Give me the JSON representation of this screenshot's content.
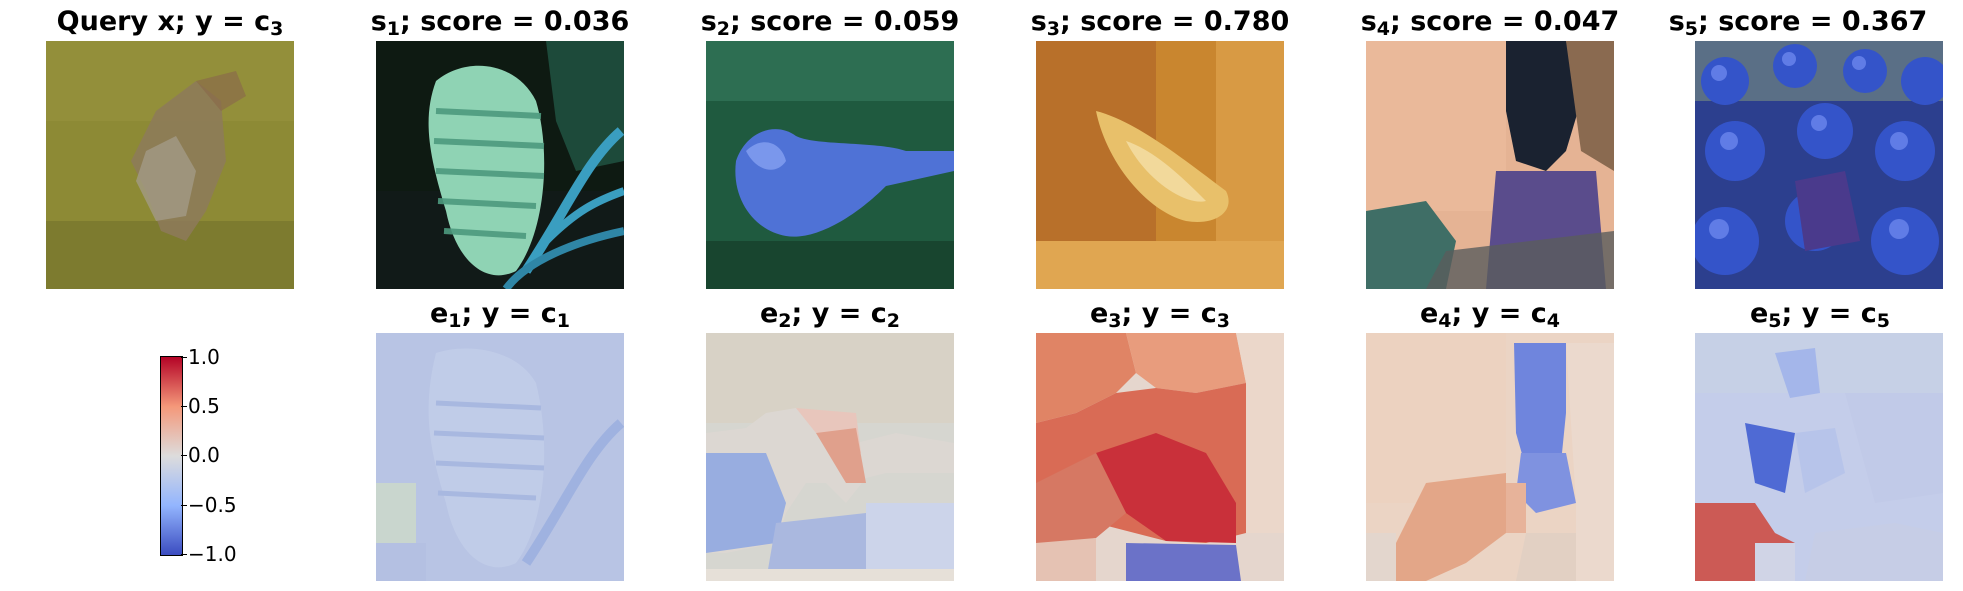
{
  "query": {
    "pre": "Query x; y = c",
    "sub": "3"
  },
  "titles": [
    {
      "name": "s",
      "sub": "1",
      "text": "; score = 0.036"
    },
    {
      "name": "s",
      "sub": "2",
      "text": "; score = 0.059"
    },
    {
      "name": "s",
      "sub": "3",
      "text": "; score = 0.780"
    },
    {
      "name": "s",
      "sub": "4",
      "text": "; score = 0.047"
    },
    {
      "name": "s",
      "sub": "5",
      "text": "; score = 0.367"
    }
  ],
  "explanations": [
    {
      "name": "e",
      "sub": "1",
      "mid": "; y = c",
      "sub2": "1"
    },
    {
      "name": "e",
      "sub": "2",
      "mid": "; y = c",
      "sub2": "2"
    },
    {
      "name": "e",
      "sub": "3",
      "mid": "; y = c",
      "sub2": "3"
    },
    {
      "name": "e",
      "sub": "4",
      "mid": "; y = c",
      "sub2": "4"
    },
    {
      "name": "e",
      "sub": "5",
      "mid": "; y = c",
      "sub2": "5"
    }
  ],
  "colorbar": {
    "colormap": "coolwarm",
    "ticks": [
      "1.0",
      "0.5",
      "0.0",
      "−0.5",
      "−1.0"
    ],
    "range": [
      -1.0,
      1.0
    ]
  },
  "chart_data": {
    "type": "heatmap",
    "title": "",
    "series": [
      {
        "name": "",
        "score": 0.036
      },
      {
        "name": "",
        "score": 0.059
      },
      {
        "name": "",
        "score": 0.78
      },
      {
        "name": "",
        "score": 0.047
      },
      {
        "name": "",
        "score": 0.367
      }
    ],
    "colorbar_range": [
      -1.0,
      1.0
    ]
  }
}
